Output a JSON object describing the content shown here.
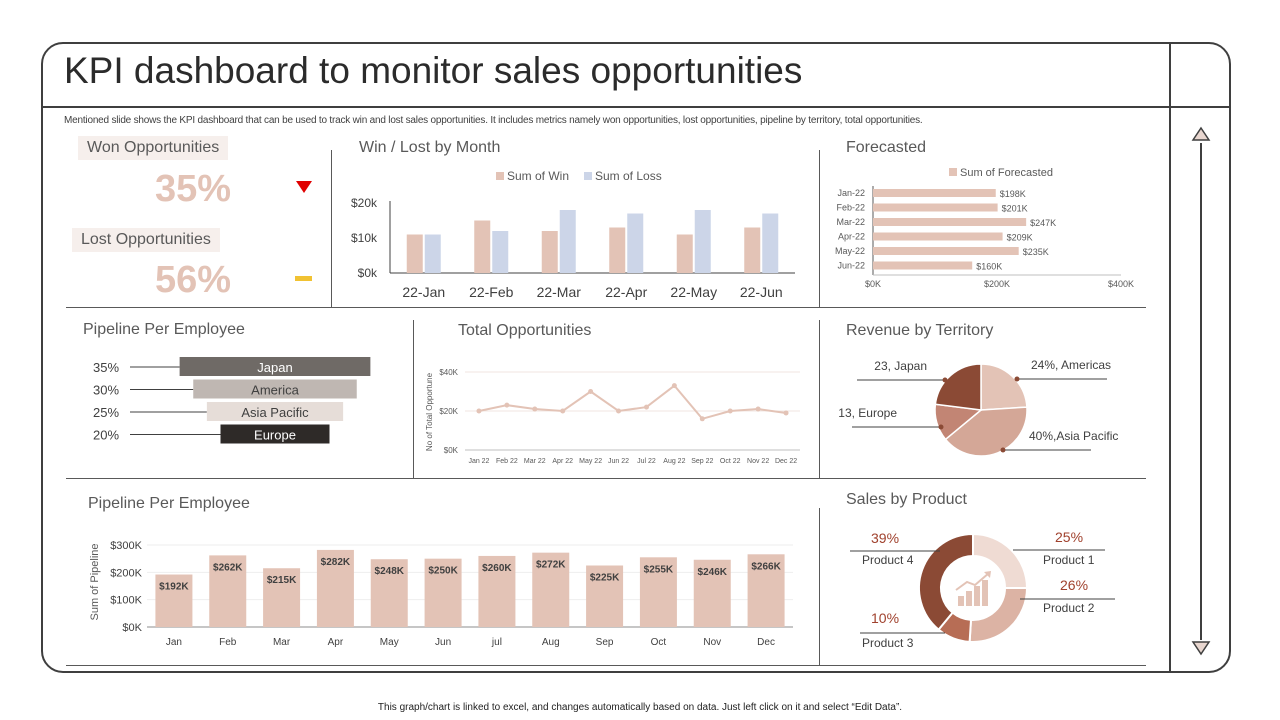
{
  "header": {
    "title": "KPI dashboard to monitor sales opportunities",
    "subtitle": "Mentioned slide shows the KPI dashboard that can be used to track win and lost sales opportunities. It includes metrics namely won opportunities, lost opportunities, pipeline by territory, total opportunities."
  },
  "kpis": {
    "won": {
      "label": "Won Opportunities",
      "value": "35%"
    },
    "lost": {
      "label": "Lost Opportunities",
      "value": "56%"
    }
  },
  "footer": {
    "note": "This graph/chart is linked to excel, and changes automatically based on data. Just left click on it and select “Edit Data”."
  },
  "panels": {
    "win_lost": "Win / Lost by Month",
    "forecasted": "Forecasted",
    "pipeline_employee_top": "Pipeline Per Employee",
    "total_opps": "Total Opportunities",
    "revenue_territory": "Revenue by Territory",
    "pipeline_employee_bottom": "Pipeline Per Employee",
    "sales_product": "Sales by Product"
  },
  "colors": {
    "win": "#e3c3b6",
    "loss": "#ccd5e8",
    "accent": "#8b4a35",
    "red": "#e00000",
    "yellow": "#f1c232"
  },
  "chart_data": [
    {
      "id": "win_lost",
      "type": "bar",
      "title": "Win / Lost by Month",
      "categories": [
        "22-Jan",
        "22-Feb",
        "22-Mar",
        "22-Apr",
        "22-May",
        "22-Jun"
      ],
      "series": [
        {
          "name": "Sum of Win",
          "values": [
            11000,
            15000,
            12000,
            13000,
            11000,
            13000
          ]
        },
        {
          "name": "Sum of Loss",
          "values": [
            11000,
            12000,
            18000,
            17000,
            18000,
            17000
          ]
        }
      ],
      "yticks": [
        "$0k",
        "$10k",
        "$20k"
      ],
      "ylim": [
        0,
        20000
      ]
    },
    {
      "id": "forecasted",
      "type": "bar",
      "orientation": "horizontal",
      "title": "Forecasted",
      "legend": "Sum of Forecasted",
      "categories": [
        "Jan-22",
        "Feb-22",
        "Mar-22",
        "Apr-22",
        "May-22",
        "Jun-22"
      ],
      "values": [
        198,
        201,
        247,
        209,
        235,
        160
      ],
      "labels": [
        "$198K",
        "$201K",
        "$247K",
        "$209K",
        "$235K",
        "$160K"
      ],
      "xticks": [
        "$0K",
        "$200K",
        "$400K"
      ],
      "xlim": [
        0,
        400
      ]
    },
    {
      "id": "pipeline_top",
      "type": "bar",
      "orientation": "horizontal",
      "title": "Pipeline Per Employee",
      "items": [
        {
          "name": "Japan",
          "pct": "35%",
          "value": 35
        },
        {
          "name": "America",
          "pct": "30%",
          "value": 30
        },
        {
          "name": "Asia Pacific",
          "pct": "25%",
          "value": 25
        },
        {
          "name": "Europe",
          "pct": "20%",
          "value": 20
        }
      ]
    },
    {
      "id": "total_opps",
      "type": "line",
      "title": "Total Opportunities",
      "ylabel": "No of Total Opportune",
      "x": [
        "Jan 22",
        "Feb 22",
        "Mar 22",
        "Apr 22",
        "May 22",
        "Jun 22",
        "Jul 22",
        "Aug 22",
        "Sep 22",
        "Oct 22",
        "Nov 22",
        "Dec 22"
      ],
      "values": [
        20000,
        23000,
        21000,
        20000,
        30000,
        20000,
        22000,
        33000,
        16000,
        20000,
        21000,
        19000
      ],
      "yticks": [
        "$0K",
        "$20K",
        "$40K"
      ],
      "ylim": [
        0,
        40000
      ]
    },
    {
      "id": "revenue_territory",
      "type": "pie",
      "title": "Revenue by Territory",
      "slices": [
        {
          "name": "Americas",
          "value": 24,
          "label": "24%, Americas"
        },
        {
          "name": "Asia Pacific",
          "value": 40,
          "label": "40%,Asia Pacific"
        },
        {
          "name": "Europe",
          "value": 13,
          "label": "13, Europe"
        },
        {
          "name": "Japan",
          "value": 23,
          "label": "23, Japan"
        }
      ]
    },
    {
      "id": "pipeline_bottom",
      "type": "bar",
      "title": "Pipeline Per Employee",
      "ylabel": "Sum of Pipeline",
      "categories": [
        "Jan",
        "Feb",
        "Mar",
        "Apr",
        "May",
        "Jun",
        "jul",
        "Aug",
        "Sep",
        "Oct",
        "Nov",
        "Dec"
      ],
      "values": [
        192,
        262,
        215,
        282,
        248,
        250,
        260,
        272,
        225,
        255,
        246,
        266
      ],
      "labels": [
        "$192K",
        "$262K",
        "$215K",
        "$282K",
        "$248K",
        "$250K",
        "$260K",
        "$272K",
        "$225K",
        "$255K",
        "$246K",
        "$266K"
      ],
      "yticks": [
        "$0K",
        "$100K",
        "$200K",
        "$300K"
      ],
      "ylim": [
        0,
        300
      ]
    },
    {
      "id": "sales_product",
      "type": "pie",
      "donut": true,
      "title": "Sales by Product",
      "slices": [
        {
          "name": "Product 1",
          "value": 25,
          "pct": "25%"
        },
        {
          "name": "Product 2",
          "value": 26,
          "pct": "26%"
        },
        {
          "name": "Product 3",
          "value": 10,
          "pct": "10%"
        },
        {
          "name": "Product 4",
          "value": 39,
          "pct": "39%"
        }
      ]
    }
  ]
}
